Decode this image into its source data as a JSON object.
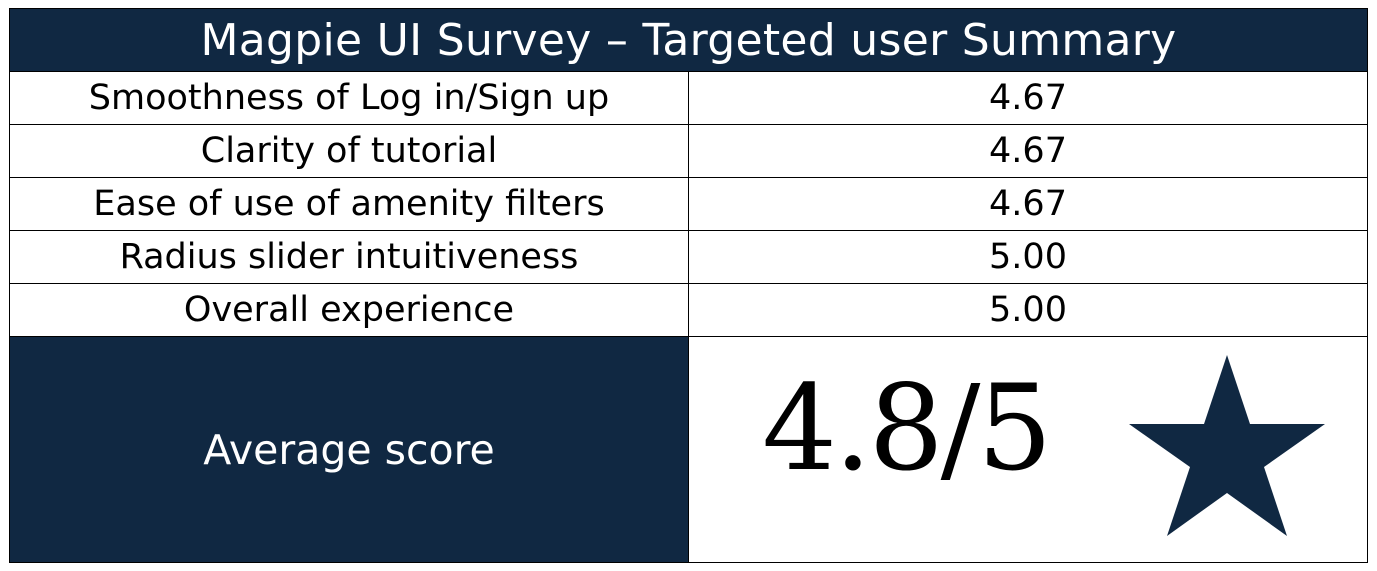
{
  "title": "Magpie UI Survey – Targeted user Summary",
  "rows": [
    {
      "label": "Smoothness of Log in/Sign up",
      "value": "4.67"
    },
    {
      "label": "Clarity of tutorial",
      "value": "4.67"
    },
    {
      "label": "Ease of use of amenity filters",
      "value": "4.67"
    },
    {
      "label": "Radius slider intuitiveness",
      "value": "5.00"
    },
    {
      "label": "Overall experience",
      "value": "5.00"
    }
  ],
  "average": {
    "label": "Average score",
    "score": "4.8/5",
    "icon": "star-icon"
  },
  "colors": {
    "header_bg": "#102842",
    "star": "#102842"
  }
}
